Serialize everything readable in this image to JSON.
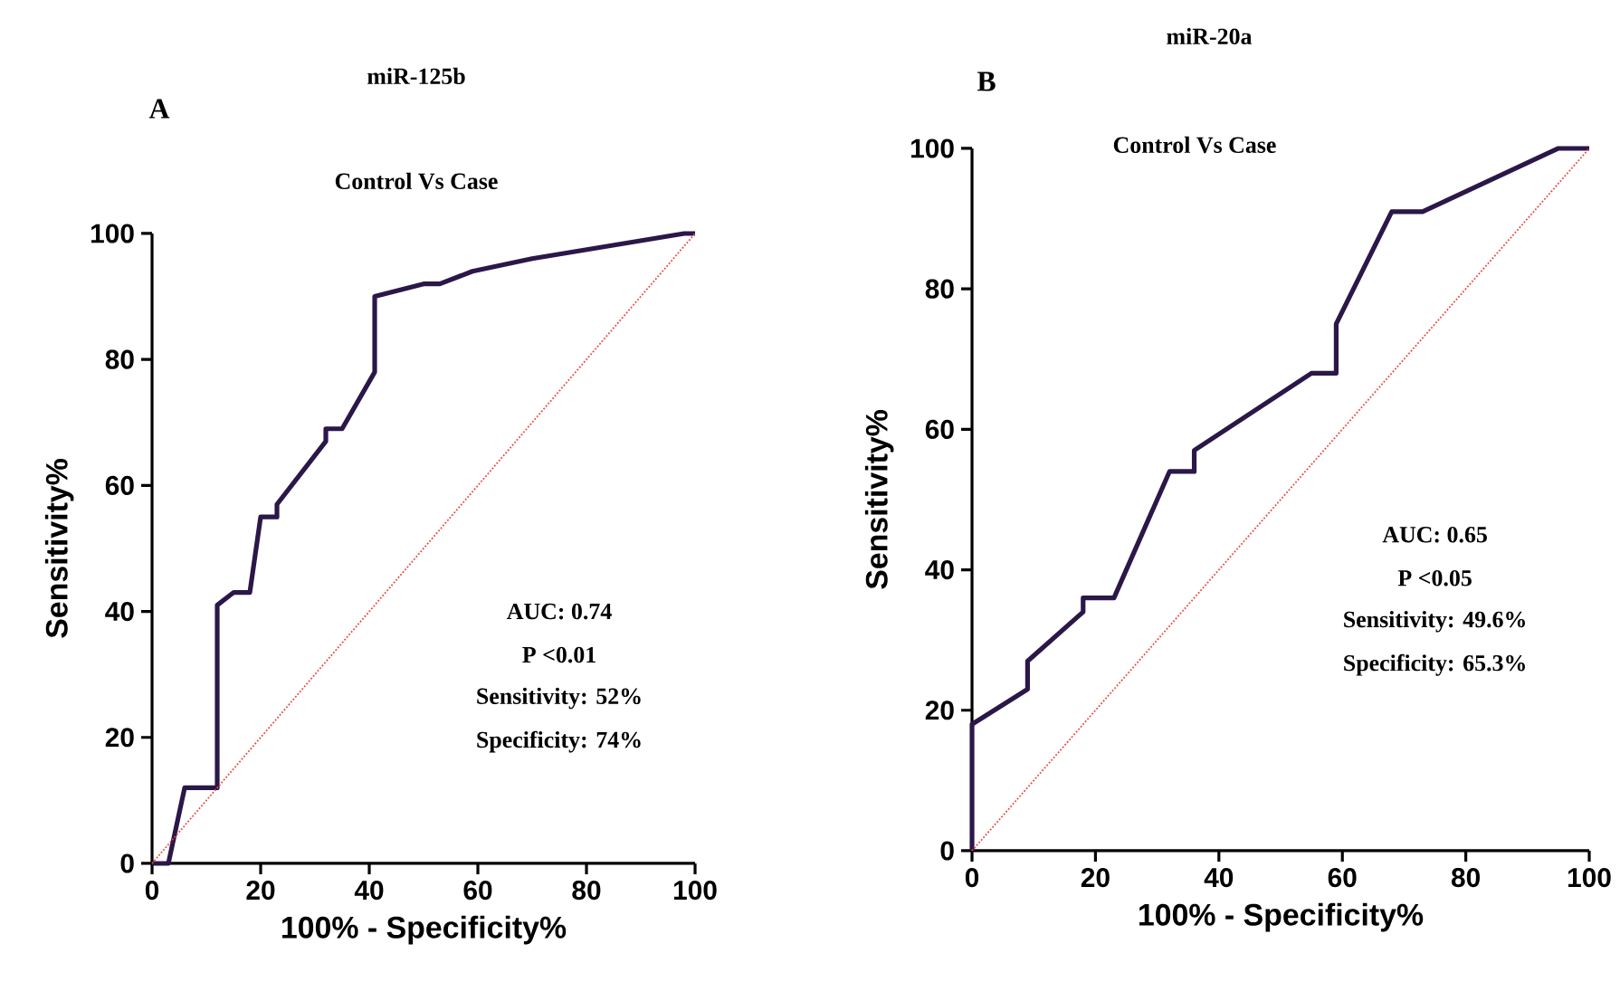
{
  "chart_data": [
    {
      "type": "line",
      "title": "miR-125b",
      "subtitle": "Control Vs Case",
      "xlabel": "100% - Specificity%",
      "ylabel": "Sensitivity%",
      "xlim": [
        0,
        100
      ],
      "ylim": [
        0,
        100
      ],
      "xticks": [
        0,
        20,
        40,
        60,
        80,
        100
      ],
      "yticks": [
        0,
        20,
        40,
        60,
        80,
        100
      ],
      "marker": "none",
      "series": [
        {
          "color": "#2b1748",
          "line_style": "solid",
          "x": [
            0,
            3,
            6,
            12,
            12,
            15,
            18,
            20,
            23,
            23,
            32,
            32,
            35,
            41,
            41,
            50,
            53,
            59,
            70,
            98,
            100
          ],
          "values": [
            0,
            0,
            12,
            12,
            41,
            43,
            43,
            55,
            55,
            57,
            67,
            69,
            69,
            78,
            90,
            92,
            92,
            94,
            96,
            100,
            100
          ]
        },
        {
          "color": "#e8493f",
          "line_style": "dotted",
          "x": [
            0,
            100
          ],
          "values": [
            0,
            100
          ]
        }
      ],
      "annotations": [
        "A",
        "AUC: 0.74",
        "P <0.01",
        "Sensitivity: 52%",
        "Specificity: 74%"
      ]
    },
    {
      "type": "line",
      "title": "miR-20a",
      "subtitle": "Control Vs Case",
      "xlabel": "100% - Specificity%",
      "ylabel": "Sensitivity%",
      "xlim": [
        0,
        100
      ],
      "ylim": [
        0,
        100
      ],
      "xticks": [
        0,
        20,
        40,
        60,
        80,
        100
      ],
      "yticks": [
        0,
        20,
        40,
        60,
        80,
        100
      ],
      "marker": "none",
      "series": [
        {
          "color": "#2b1748",
          "line_style": "solid",
          "x": [
            0,
            0,
            9,
            9,
            18,
            18,
            23,
            32,
            36,
            36,
            55,
            59,
            59,
            68,
            73,
            95,
            100
          ],
          "values": [
            0,
            18,
            23,
            27,
            34,
            36,
            36,
            54,
            54,
            57,
            68,
            68,
            75,
            91,
            91,
            100,
            100
          ]
        },
        {
          "color": "#e8493f",
          "line_style": "dotted",
          "x": [
            0,
            100
          ],
          "values": [
            0,
            100
          ]
        }
      ],
      "annotations": [
        "B",
        "AUC: 0.65",
        "P <0.05",
        "Sensitivity: 49.6%",
        "Specificity: 65.3%"
      ]
    }
  ]
}
